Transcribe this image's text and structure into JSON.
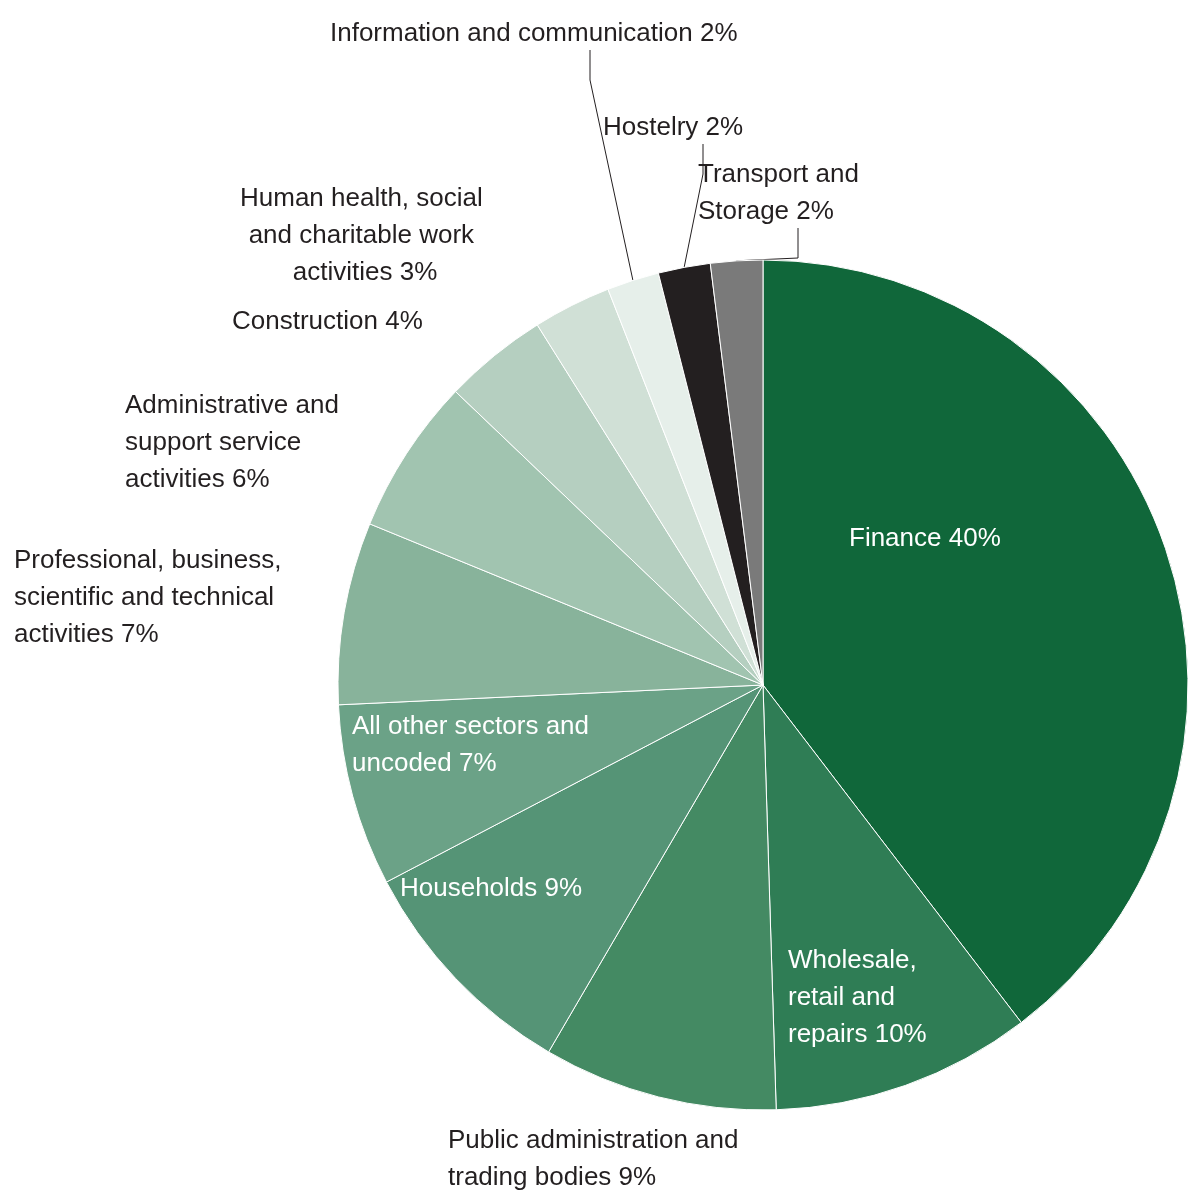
{
  "chart_data": {
    "type": "pie",
    "categories": [
      "Finance",
      "Wholesale, retail and repairs",
      "Public administration and trading bodies",
      "Households",
      "All other sectors and uncoded",
      "Professional, business, scientific and technical activities",
      "Administrative and support service activities",
      "Construction",
      "Human health, social and charitable work activities",
      "Information and communication",
      "Hostelry",
      "Transport and Storage"
    ],
    "values": [
      40,
      10,
      9,
      9,
      7,
      7,
      6,
      4,
      3,
      2,
      2,
      2
    ],
    "value_labels": [
      "40%",
      "10%",
      "9%",
      "9%",
      "7%",
      "7%",
      "6%",
      "4%",
      "3%",
      "2%",
      "2%",
      "2%"
    ],
    "colors": [
      "#10673a",
      "#2f7d55",
      "#448a63",
      "#559476",
      "#6ba287",
      "#88b39b",
      "#a1c4b0",
      "#b5cfc0",
      "#d0e0d6",
      "#e6efea",
      "#231f20",
      "#7a7a7a"
    ],
    "legend": false
  }
}
